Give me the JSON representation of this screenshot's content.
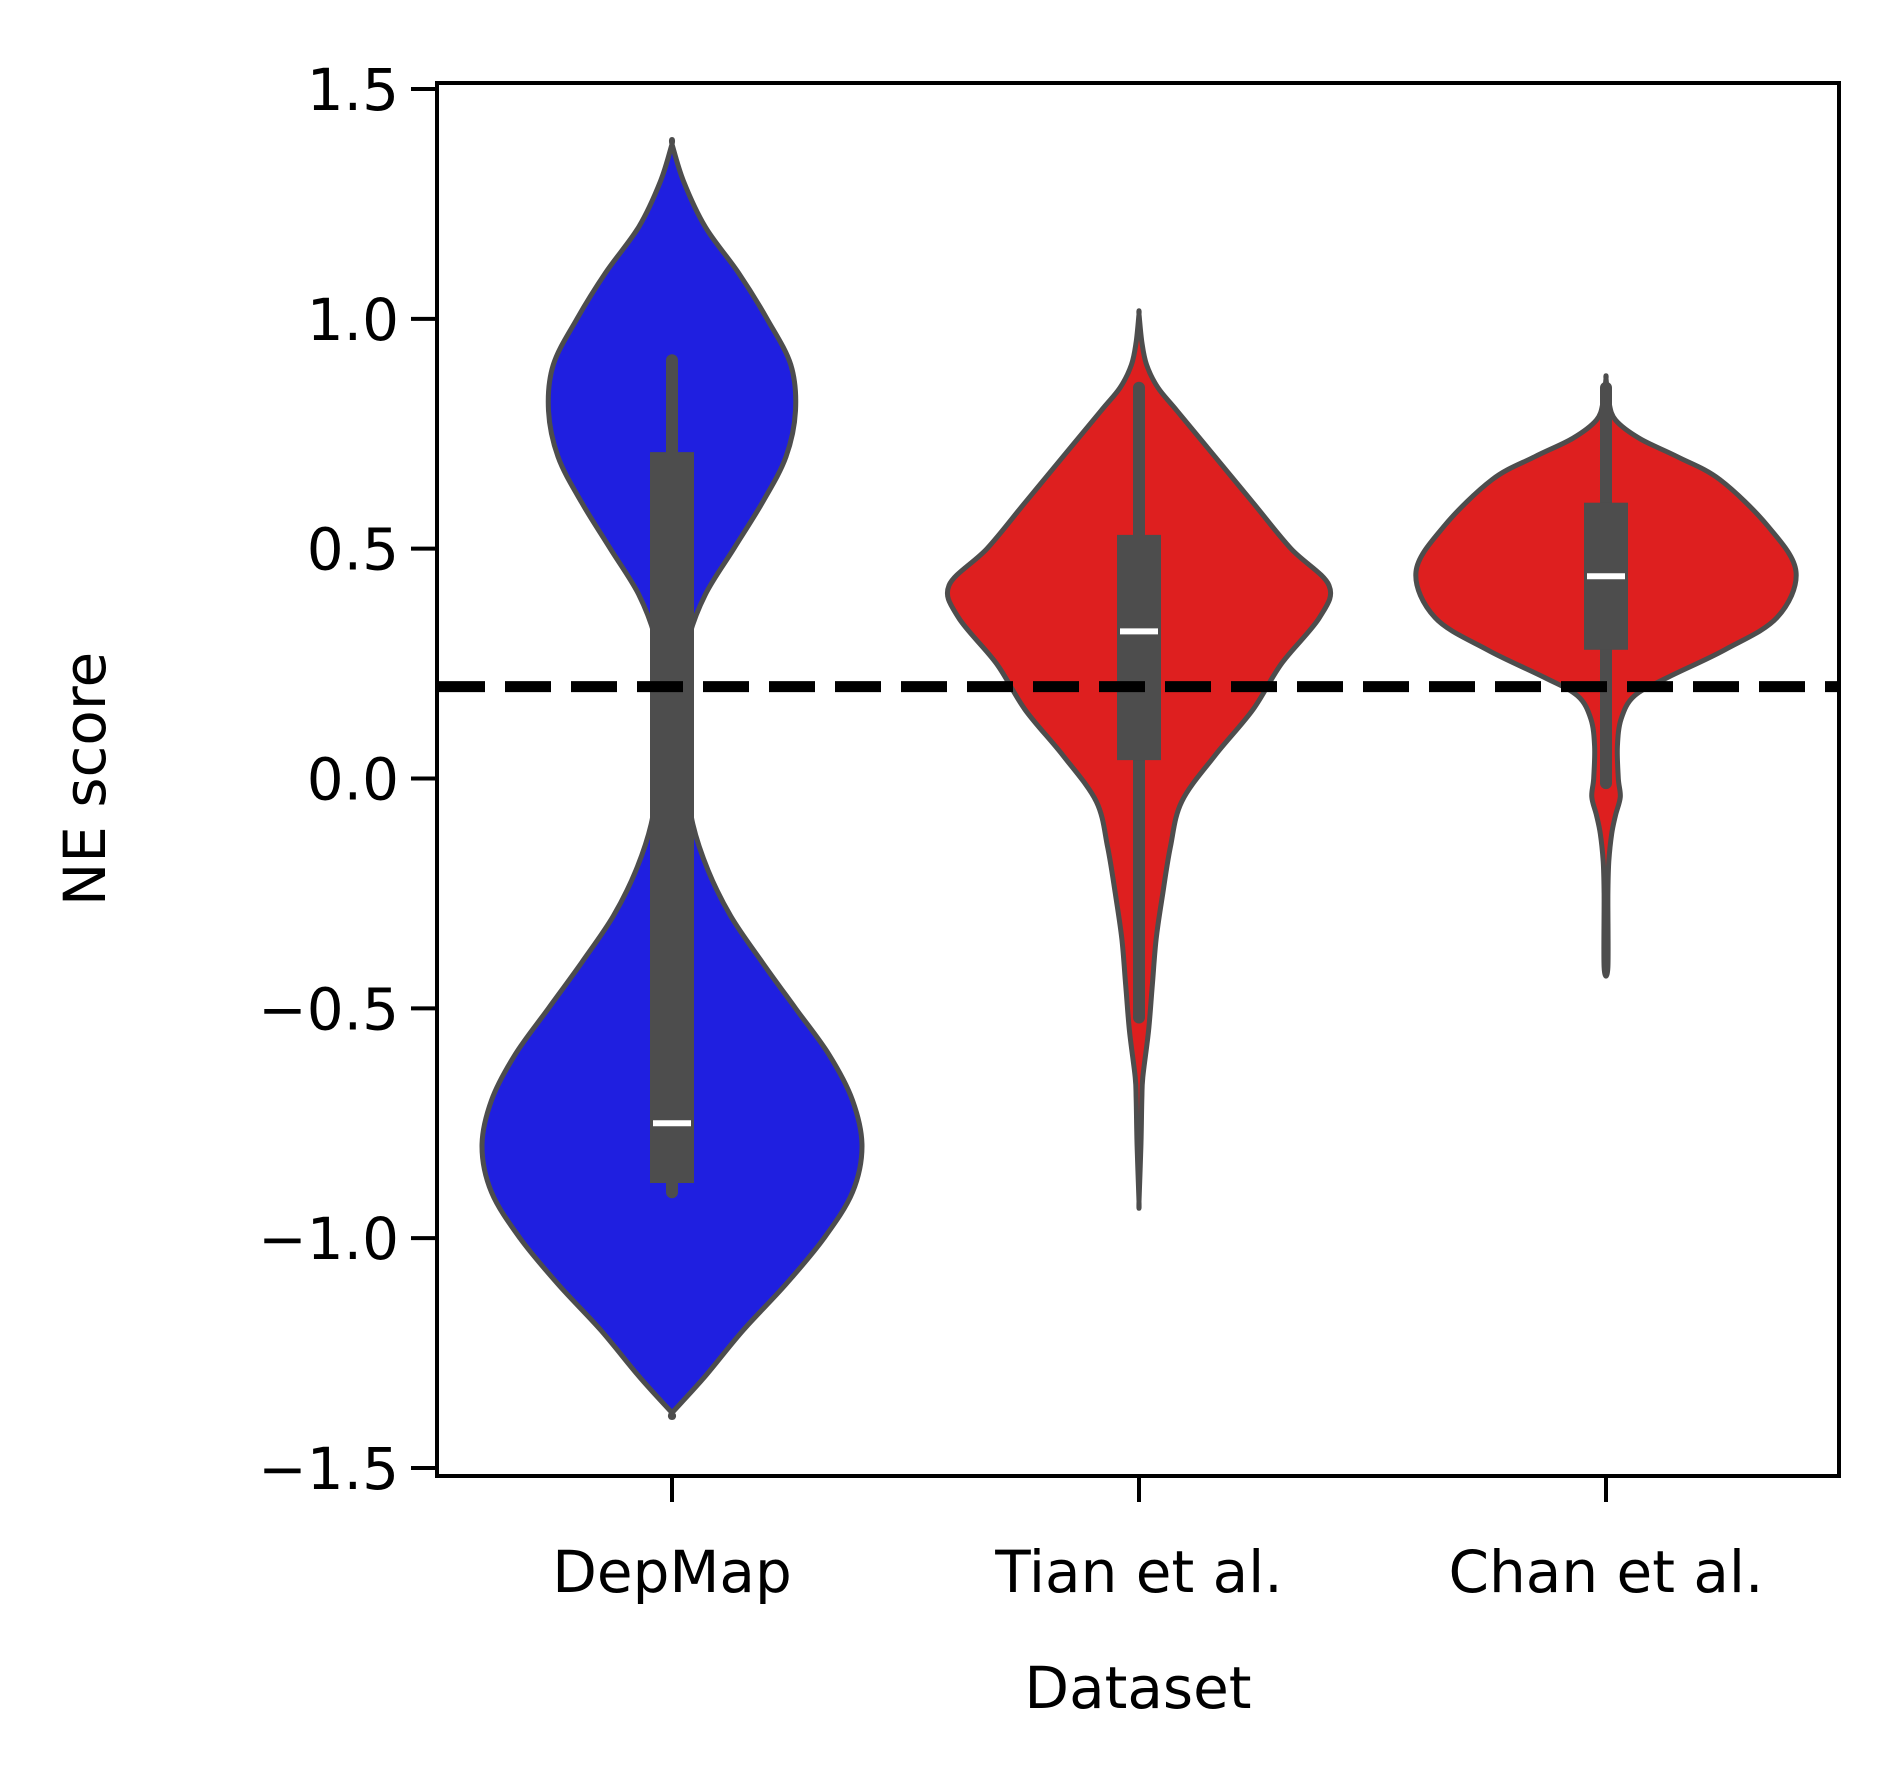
{
  "chart_data": {
    "type": "violin",
    "title": "",
    "xlabel": "Dataset",
    "ylabel": "NE score",
    "ylim": [
      -1.5,
      1.5
    ],
    "yticks": [
      {
        "value": 1.5,
        "label": "1.5"
      },
      {
        "value": 1.0,
        "label": "1.0"
      },
      {
        "value": 0.5,
        "label": "0.5"
      },
      {
        "value": 0.0,
        "label": "0.0"
      },
      {
        "value": -0.5,
        "label": "−0.5"
      },
      {
        "value": -1.0,
        "label": "−1.0"
      },
      {
        "value": -1.5,
        "label": "−1.5"
      }
    ],
    "categories": [
      "DepMap",
      "Tian et al.",
      "Chan et al."
    ],
    "threshold": 0.2,
    "grid": false,
    "legend": "none",
    "colors": {
      "DepMap": "#1f1fe0",
      "Tian et al.": "#de1f1f",
      "Chan et al.": "#de1f1f",
      "outline": "#4d4d4d",
      "box": "#4d4d4d",
      "median": "#ffffff",
      "threshold": "#000000"
    },
    "violins": [
      {
        "category": "DepMap",
        "box": {
          "whisker_low": -0.9,
          "q1": -0.88,
          "median": -0.75,
          "q3": 0.71,
          "whisker_high": 0.91
        },
        "profile": [
          [
            1.38,
            0.0
          ],
          [
            1.3,
            0.012
          ],
          [
            1.2,
            0.035
          ],
          [
            1.1,
            0.07
          ],
          [
            1.0,
            0.1
          ],
          [
            0.9,
            0.125
          ],
          [
            0.8,
            0.13
          ],
          [
            0.7,
            0.12
          ],
          [
            0.6,
            0.095
          ],
          [
            0.5,
            0.065
          ],
          [
            0.4,
            0.035
          ],
          [
            0.3,
            0.017
          ],
          [
            0.2,
            0.012
          ],
          [
            0.1,
            0.012
          ],
          [
            0.0,
            0.015
          ],
          [
            -0.1,
            0.022
          ],
          [
            -0.2,
            0.038
          ],
          [
            -0.3,
            0.062
          ],
          [
            -0.4,
            0.095
          ],
          [
            -0.5,
            0.13
          ],
          [
            -0.6,
            0.165
          ],
          [
            -0.7,
            0.19
          ],
          [
            -0.8,
            0.2
          ],
          [
            -0.9,
            0.19
          ],
          [
            -1.0,
            0.16
          ],
          [
            -1.1,
            0.12
          ],
          [
            -1.2,
            0.075
          ],
          [
            -1.3,
            0.035
          ],
          [
            -1.38,
            0.0
          ]
        ]
      },
      {
        "category": "Tian et al.",
        "box": {
          "whisker_low": -0.52,
          "q1": 0.04,
          "median": 0.32,
          "q3": 0.53,
          "whisker_high": 0.85
        },
        "profile": [
          [
            1.01,
            0.0
          ],
          [
            0.95,
            0.003
          ],
          [
            0.9,
            0.008
          ],
          [
            0.85,
            0.02
          ],
          [
            0.8,
            0.04
          ],
          [
            0.7,
            0.08
          ],
          [
            0.6,
            0.12
          ],
          [
            0.5,
            0.16
          ],
          [
            0.42,
            0.2
          ],
          [
            0.35,
            0.19
          ],
          [
            0.25,
            0.15
          ],
          [
            0.15,
            0.12
          ],
          [
            0.05,
            0.08
          ],
          [
            -0.05,
            0.045
          ],
          [
            -0.15,
            0.033
          ],
          [
            -0.25,
            0.025
          ],
          [
            -0.35,
            0.018
          ],
          [
            -0.45,
            0.014
          ],
          [
            -0.55,
            0.01
          ],
          [
            -0.65,
            0.004
          ],
          [
            -0.7,
            0.003
          ],
          [
            -0.8,
            0.002
          ],
          [
            -0.92,
            0.0
          ]
        ]
      },
      {
        "category": "Chan et al.",
        "box": {
          "whisker_low": -0.01,
          "q1": 0.28,
          "median": 0.44,
          "q3": 0.6,
          "whisker_high": 0.85
        },
        "profile": [
          [
            0.87,
            0.0
          ],
          [
            0.82,
            0.003
          ],
          [
            0.78,
            0.01
          ],
          [
            0.74,
            0.035
          ],
          [
            0.7,
            0.075
          ],
          [
            0.65,
            0.12
          ],
          [
            0.55,
            0.17
          ],
          [
            0.45,
            0.2
          ],
          [
            0.35,
            0.18
          ],
          [
            0.28,
            0.125
          ],
          [
            0.22,
            0.065
          ],
          [
            0.18,
            0.03
          ],
          [
            0.13,
            0.016
          ],
          [
            0.07,
            0.012
          ],
          [
            0.0,
            0.013
          ],
          [
            -0.04,
            0.015
          ],
          [
            -0.08,
            0.01
          ],
          [
            -0.12,
            0.006
          ],
          [
            -0.18,
            0.003
          ],
          [
            -0.25,
            0.002
          ],
          [
            -0.41,
            0.002
          ]
        ]
      }
    ]
  }
}
